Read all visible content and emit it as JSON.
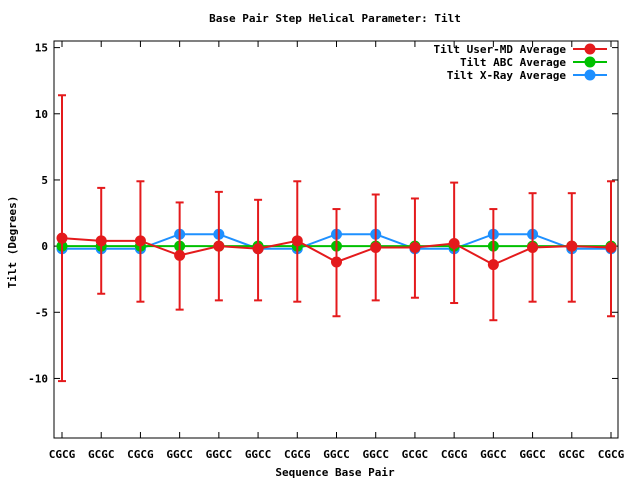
{
  "chart_data": {
    "type": "line",
    "title": "Base Pair Step Helical Parameter: Tilt",
    "xlabel": "Sequence Base Pair",
    "ylabel": "Tilt (Degrees)",
    "ylim": [
      -14.5,
      15.5
    ],
    "yticks": [
      15,
      10,
      5,
      0,
      -5,
      -10
    ],
    "grid": false,
    "legend_position": "top-right",
    "categories": [
      "CGCG",
      "GCGC",
      "CGCG",
      "GGCC",
      "GGCC",
      "GGCC",
      "CGCG",
      "GGCC",
      "GGCC",
      "GCGC",
      "CGCG",
      "GGCC",
      "GGCC",
      "GCGC",
      "CGCG"
    ],
    "series": [
      {
        "name": "Tilt User-MD Average",
        "color": "#e41a1c",
        "values": [
          0.6,
          0.4,
          0.4,
          -0.7,
          0.0,
          -0.2,
          0.4,
          -1.2,
          -0.1,
          -0.1,
          0.2,
          -1.4,
          -0.1,
          0.0,
          -0.1
        ],
        "error_low": [
          -10.2,
          -3.6,
          -4.2,
          -4.8,
          -4.1,
          -4.1,
          -4.2,
          -5.3,
          -4.1,
          -3.9,
          -4.3,
          -5.6,
          -4.2,
          -4.2,
          -5.3
        ],
        "error_high": [
          11.4,
          4.4,
          4.9,
          3.3,
          4.1,
          3.5,
          4.9,
          2.8,
          3.9,
          3.6,
          4.8,
          2.8,
          4.0,
          4.0,
          4.9
        ]
      },
      {
        "name": "Tilt ABC Average",
        "color": "#00c000",
        "values": [
          0.0,
          0.0,
          0.0,
          0.0,
          0.0,
          0.0,
          0.0,
          0.0,
          0.0,
          0.0,
          0.0,
          0.0,
          0.0,
          0.0,
          0.0
        ]
      },
      {
        "name": "Tilt X-Ray Average",
        "color": "#1e90ff",
        "values": [
          -0.2,
          -0.2,
          -0.2,
          0.9,
          0.9,
          -0.2,
          -0.2,
          0.9,
          0.9,
          -0.2,
          -0.2,
          0.9,
          0.9,
          -0.2,
          -0.2
        ]
      }
    ]
  }
}
